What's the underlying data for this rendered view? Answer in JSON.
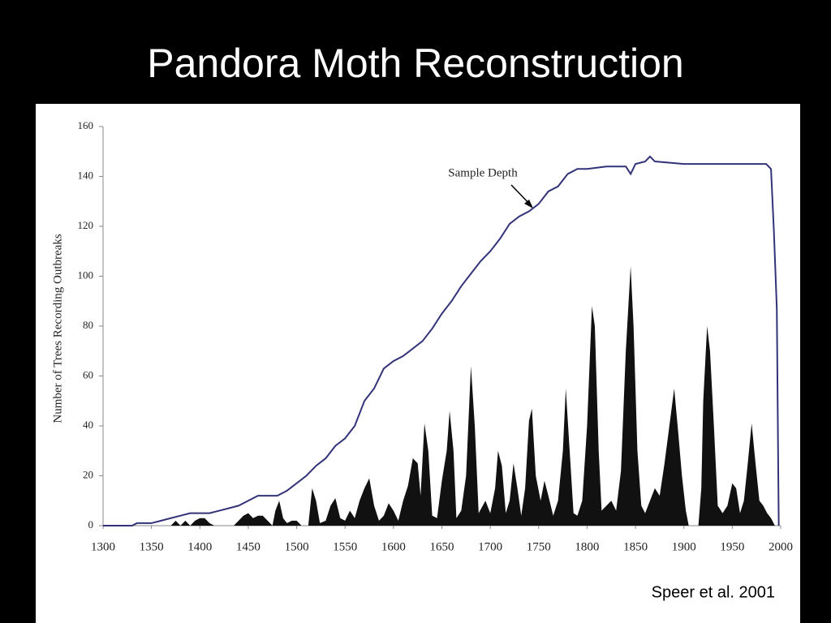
{
  "chart_data": {
    "type": "line",
    "title": "Pandora Moth Reconstruction",
    "ylabel": "Number of Trees Recording Outbreaks",
    "source": "Speer et al. 2001",
    "annotations": [
      {
        "text": "Sample Depth"
      }
    ],
    "xlim": [
      1300,
      2000
    ],
    "xticks": [
      1300,
      1350,
      1400,
      1450,
      1500,
      1550,
      1600,
      1650,
      1700,
      1750,
      1800,
      1850,
      1900,
      1950,
      2000
    ],
    "ylim": [
      0,
      160
    ],
    "yticks": [
      0,
      20,
      40,
      60,
      80,
      100,
      120,
      140,
      160
    ],
    "series": [
      {
        "style": "line",
        "color": "#33337a",
        "x": [
          1300,
          1330,
          1335,
          1350,
          1360,
          1370,
          1380,
          1390,
          1410,
          1420,
          1430,
          1440,
          1450,
          1460,
          1480,
          1490,
          1500,
          1510,
          1520,
          1530,
          1540,
          1550,
          1560,
          1570,
          1580,
          1590,
          1600,
          1610,
          1620,
          1630,
          1640,
          1650,
          1660,
          1670,
          1680,
          1690,
          1700,
          1710,
          1720,
          1730,
          1740,
          1750,
          1760,
          1770,
          1780,
          1790,
          1800,
          1820,
          1840,
          1845,
          1850,
          1860,
          1865,
          1870,
          1900,
          1950,
          1985,
          1990,
          1993,
          1996,
          1998
        ],
        "values": [
          0,
          0,
          1,
          1,
          2,
          3,
          4,
          5,
          5,
          6,
          7,
          8,
          10,
          12,
          12,
          14,
          17,
          20,
          24,
          27,
          32,
          35,
          40,
          50,
          55,
          63,
          66,
          68,
          71,
          74,
          79,
          85,
          90,
          96,
          101,
          106,
          110,
          115,
          121,
          124,
          126,
          129,
          134,
          136,
          141,
          143,
          143,
          144,
          144,
          141,
          145,
          146,
          148,
          146,
          145,
          145,
          145,
          143,
          118,
          87,
          0
        ]
      },
      {
        "style": "area",
        "color": "#111111",
        "x": [
          1300,
          1370,
          1375,
          1380,
          1385,
          1390,
          1395,
          1400,
          1405,
          1410,
          1415,
          1435,
          1440,
          1445,
          1450,
          1455,
          1460,
          1465,
          1470,
          1475,
          1478,
          1482,
          1486,
          1490,
          1495,
          1500,
          1505,
          1512,
          1516,
          1520,
          1524,
          1530,
          1535,
          1540,
          1545,
          1550,
          1555,
          1560,
          1565,
          1570,
          1575,
          1580,
          1585,
          1590,
          1595,
          1600,
          1605,
          1610,
          1615,
          1620,
          1625,
          1628,
          1632,
          1636,
          1640,
          1645,
          1650,
          1655,
          1658,
          1662,
          1665,
          1670,
          1675,
          1680,
          1684,
          1688,
          1695,
          1700,
          1705,
          1708,
          1712,
          1716,
          1720,
          1724,
          1728,
          1732,
          1736,
          1740,
          1743,
          1747,
          1752,
          1756,
          1760,
          1765,
          1770,
          1775,
          1778,
          1782,
          1786,
          1790,
          1795,
          1800,
          1805,
          1808,
          1812,
          1815,
          1820,
          1825,
          1830,
          1835,
          1840,
          1845,
          1848,
          1852,
          1856,
          1860,
          1865,
          1870,
          1875,
          1880,
          1885,
          1890,
          1894,
          1898,
          1902,
          1905,
          1915,
          1918,
          1920,
          1924,
          1927,
          1931,
          1935,
          1940,
          1945,
          1950,
          1954,
          1958,
          1962,
          1966,
          1970,
          1974,
          1978,
          1982,
          1986,
          1990,
          1994
        ],
        "values": [
          0,
          0,
          2,
          0,
          2,
          0,
          2,
          3,
          3,
          1,
          0,
          0,
          2,
          4,
          5,
          3,
          4,
          4,
          2,
          0,
          6,
          10,
          3,
          1,
          2,
          2,
          0,
          0,
          15,
          10,
          1,
          2,
          8,
          11,
          3,
          2,
          6,
          3,
          10,
          15,
          19,
          8,
          2,
          4,
          9,
          6,
          2,
          10,
          16,
          27,
          25,
          12,
          41,
          30,
          4,
          3,
          18,
          30,
          46,
          30,
          3,
          6,
          20,
          64,
          40,
          5,
          10,
          5,
          15,
          30,
          24,
          5,
          10,
          25,
          15,
          4,
          15,
          42,
          47,
          20,
          10,
          18,
          12,
          4,
          10,
          30,
          55,
          30,
          5,
          4,
          10,
          40,
          88,
          80,
          30,
          6,
          8,
          10,
          6,
          22,
          70,
          104,
          80,
          30,
          8,
          5,
          10,
          15,
          12,
          25,
          40,
          55,
          38,
          20,
          6,
          0,
          0,
          15,
          50,
          80,
          70,
          40,
          8,
          5,
          8,
          17,
          15,
          5,
          10,
          25,
          41,
          25,
          10,
          8,
          5,
          3,
          0
        ]
      }
    ]
  }
}
